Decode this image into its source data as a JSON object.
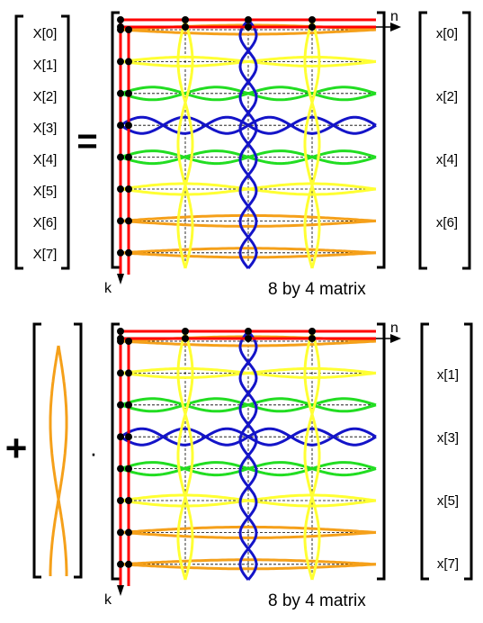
{
  "colors": {
    "background": "#ffffff",
    "axis": "#ff0000",
    "orange": "#f5a01a",
    "yellow": "#ffff33",
    "green": "#22dd22",
    "blue": "#1414c8",
    "bracket": "#000000",
    "grid": "#000000",
    "dot": "#000000"
  },
  "top": {
    "X_labels": [
      "X[0]",
      "X[1]",
      "X[2]",
      "X[3]",
      "X[4]",
      "X[5]",
      "X[6]",
      "X[7]"
    ],
    "equals": "=",
    "axis_n": "n",
    "axis_k": "k",
    "matrix_caption": "8 by 4 matrix",
    "x_labels": [
      "x[0]",
      "x[2]",
      "x[4]",
      "x[6]"
    ]
  },
  "bottom": {
    "plus": "+",
    "dot": "·",
    "axis_n": "n",
    "axis_k": "k",
    "matrix_caption": "8 by 4 matrix",
    "x_labels": [
      "x[1]",
      "x[3]",
      "x[5]",
      "x[7]"
    ]
  },
  "matrix_rows": 8,
  "matrix_cols": 4,
  "row_wave_colors": [
    "orange",
    "yellow",
    "green",
    "blue",
    "green",
    "yellow",
    "orange",
    "orange"
  ],
  "col_wave_colors": [
    "yellow",
    "blue",
    "yellow"
  ],
  "icons": [
    "left-bracket-icon",
    "right-bracket-icon",
    "arrow-right-icon",
    "arrow-down-icon",
    "wave-icon"
  ]
}
